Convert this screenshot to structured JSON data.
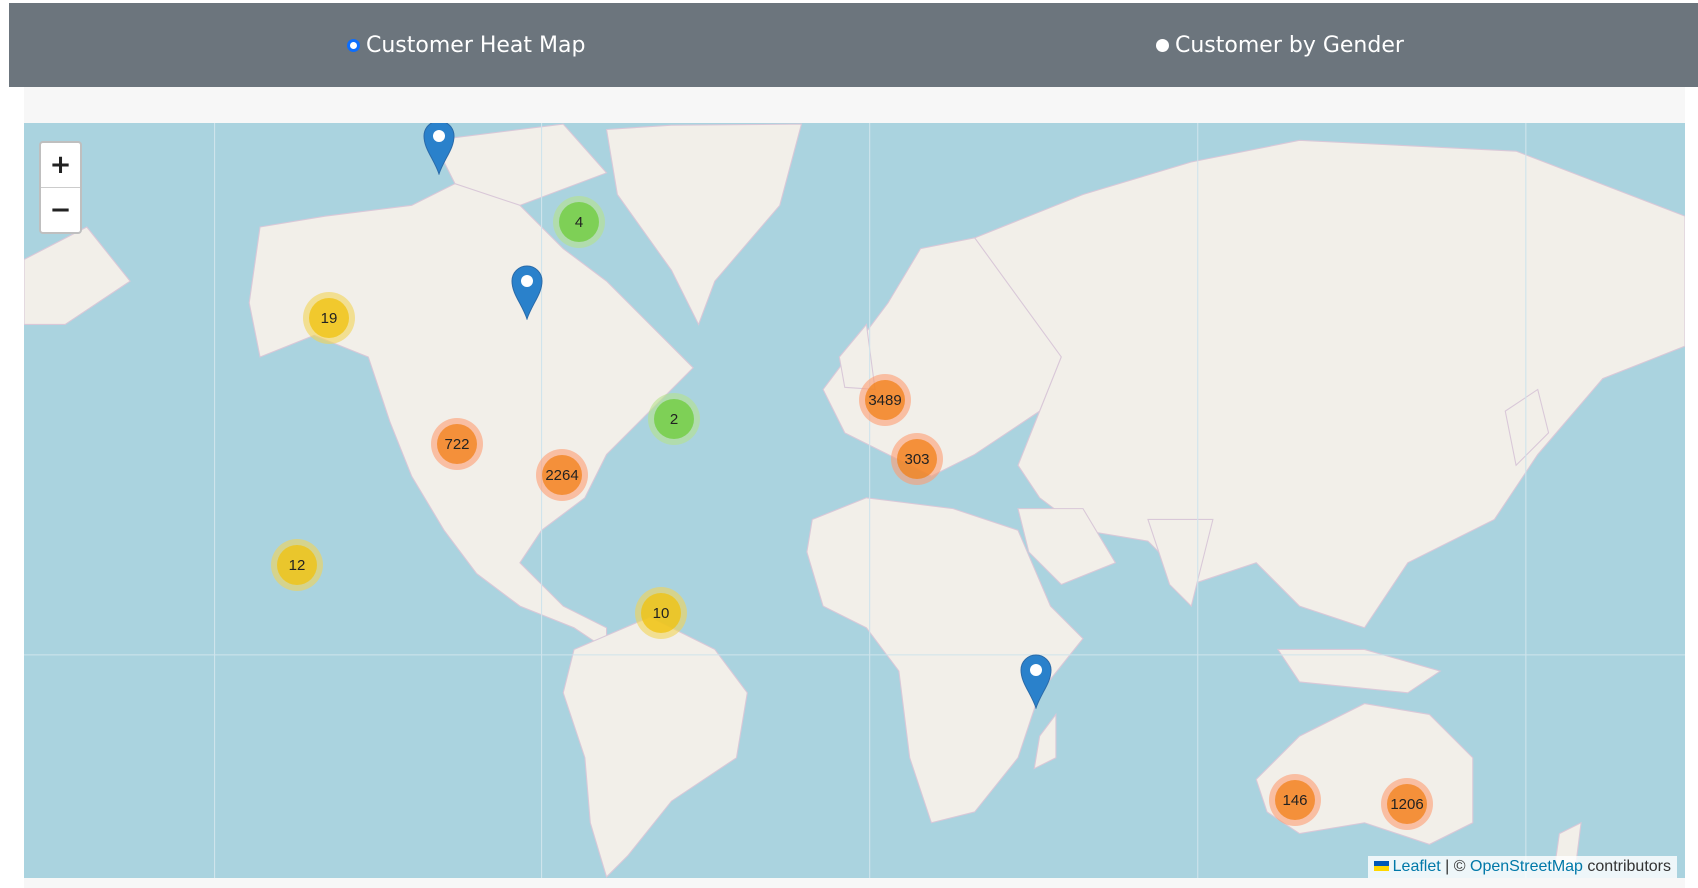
{
  "header": {
    "options": [
      {
        "label": "Customer Heat Map",
        "selected": true
      },
      {
        "label": "Customer by Gender",
        "selected": false
      }
    ]
  },
  "map": {
    "zoom_in": "+",
    "zoom_out": "−",
    "clusters": [
      {
        "count": "19",
        "level": "yellow"
      },
      {
        "count": "4",
        "level": "green"
      },
      {
        "count": "2",
        "level": "green"
      },
      {
        "count": "722",
        "level": "orange"
      },
      {
        "count": "2264",
        "level": "orange"
      },
      {
        "count": "12",
        "level": "yellow"
      },
      {
        "count": "10",
        "level": "yellow"
      },
      {
        "count": "3489",
        "level": "orange"
      },
      {
        "count": "303",
        "level": "orange"
      },
      {
        "count": "146",
        "level": "orange"
      },
      {
        "count": "1206",
        "level": "orange"
      }
    ],
    "pins": 3,
    "attribution": {
      "leaflet": "Leaflet",
      "sep": "| ©",
      "osm": "OpenStreetMap",
      "contributors": "contributors"
    },
    "colors": {
      "green": "#6ecc39",
      "yellow": "#f0c20c",
      "orange": "#f18017",
      "water": "#aad3df",
      "land": "#f2efe9",
      "pin": "#2a81cb"
    }
  }
}
